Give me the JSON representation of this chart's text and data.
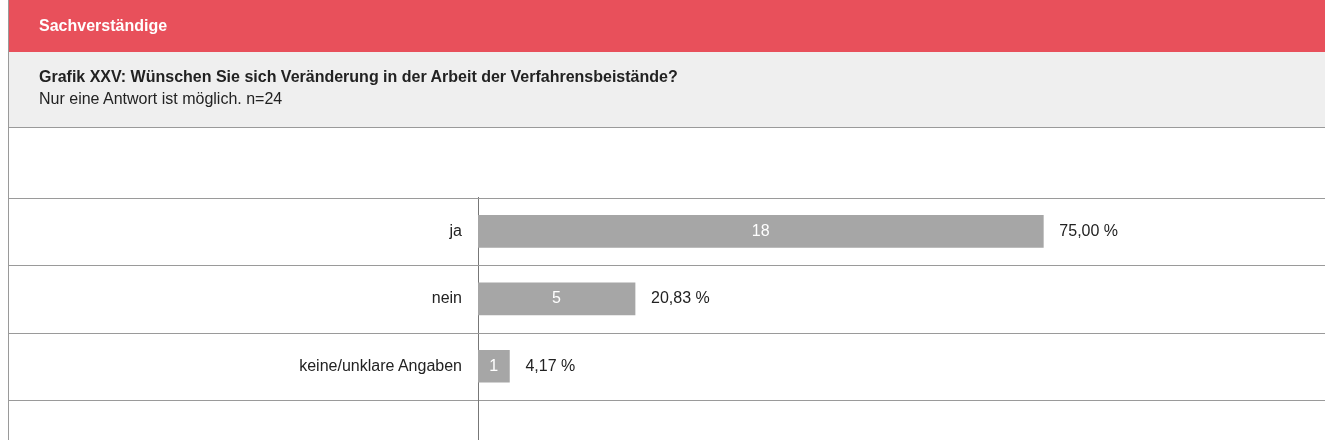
{
  "chart_data": {
    "type": "bar",
    "orientation": "horizontal",
    "title": "Grafik XXV: Wünschen Sie sich Veränderung in der Arbeit der Verfahrensbeistände?",
    "subtitle": "Nur eine Antwort ist möglich. n=24",
    "categories": [
      "ja",
      "nein",
      "keine/unklare Angaben"
    ],
    "values": [
      18,
      5,
      1
    ],
    "color": "#a6a6a6",
    "data_labels": true,
    "xlim": [
      0,
      27
    ],
    "grid": "y",
    "annotations": [
      "Sachverständige",
      {
        "text": "75,00 %",
        "x": 18,
        "y": "ja"
      },
      {
        "text": "20,83 %",
        "x": 5,
        "y": "nein"
      },
      {
        "text": "4,17 %",
        "x": 1,
        "y": "keine/unklare Angaben"
      }
    ]
  }
}
